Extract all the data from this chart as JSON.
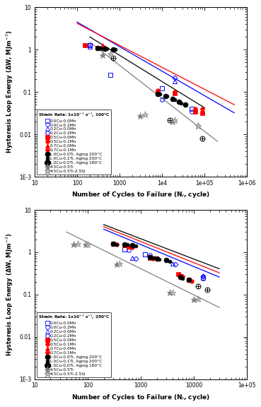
{
  "xlabel": "Number of Cycles to Failure (N$_f$, cycle)",
  "ylabel": "Hysteresis Loop Energy (ΔW, MJm$^{-3}$)",
  "legend_entries": [
    "0.0Cu-0.0Mn",
    "0.0Cu-0.2Mn",
    "0.2Cu-0.0Mn",
    "0.2Cu-0.2Mn",
    "0.5Cu-0.0Mn",
    "0.5Cu-0.1Mn",
    "0.7Cu-0.0Mn",
    "0.7Cu-0.1Mn",
    "1.0Cu-0.0Ti, Aging 200°C",
    "1.0Cu-0.1Ti, Aging 200°C",
    "1.0Cu-0.0Ti, Aging 180°C",
    "4.5Cu-0.5Ti",
    "4.5Cu-0.5Ti-2.5Si"
  ],
  "plot1": {
    "legend_title": "Strain Rate: 1x10$^{-3}$ s$^{-1}$, 100°C",
    "xlim": [
      10,
      1000000
    ],
    "ylim": [
      0.001,
      10
    ],
    "series": [
      {
        "idx": 0,
        "x": [
          200,
          600,
          10000,
          50000
        ],
        "y": [
          1.3,
          0.25,
          0.12,
          0.04
        ]
      },
      {
        "idx": 1,
        "x": [
          200,
          10000,
          50000
        ],
        "y": [
          1.3,
          0.065,
          0.035
        ]
      },
      {
        "idx": 2,
        "x": [
          200,
          400,
          20000
        ],
        "y": [
          1.2,
          1.1,
          0.18
        ]
      },
      {
        "idx": 3,
        "x": [
          20000
        ],
        "y": [
          0.22
        ]
      },
      {
        "idx": 4,
        "x": [
          150,
          300,
          8000,
          20000,
          60000,
          90000
        ],
        "y": [
          1.3,
          1.1,
          0.1,
          0.095,
          0.035,
          0.032
        ]
      },
      {
        "idx": 5,
        "x": [
          150,
          300,
          8000,
          20000,
          60000
        ],
        "y": [
          1.3,
          1.1,
          0.11,
          0.1,
          0.04
        ]
      },
      {
        "idx": 6,
        "x": [
          400,
          60000,
          90000
        ],
        "y": [
          1.3,
          0.04,
          0.035
        ]
      },
      {
        "idx": 7,
        "x": [
          8000,
          90000
        ],
        "y": [
          0.1,
          0.04
        ]
      },
      {
        "idx": 8,
        "x": [
          300,
          450,
          700,
          8000,
          12000,
          18000,
          25000,
          35000
        ],
        "y": [
          1.1,
          1.05,
          1.0,
          0.09,
          0.08,
          0.07,
          0.06,
          0.05
        ]
      },
      {
        "idx": 9,
        "x": [
          350,
          500,
          800,
          9000,
          13000,
          20000,
          28000
        ],
        "y": [
          1.1,
          1.05,
          1.0,
          0.09,
          0.08,
          0.065,
          0.055
        ]
      },
      {
        "idx": 10,
        "x": [
          700,
          15000,
          90000
        ],
        "y": [
          0.65,
          0.022,
          0.008
        ]
      },
      {
        "idx": 11,
        "x": [
          400,
          3000,
          18000,
          70000
        ],
        "y": [
          0.75,
          0.027,
          0.02,
          0.016
        ]
      },
      {
        "idx": 12,
        "x": [
          600,
          4000,
          20000,
          70000
        ],
        "y": [
          0.8,
          0.03,
          0.022,
          0.016
        ]
      }
    ],
    "fit_lines": [
      {
        "color": "blue",
        "x0": 100,
        "x1": 500000,
        "y0": 4.5,
        "slope": -0.58
      },
      {
        "color": "red",
        "x0": 100,
        "x1": 500000,
        "y0": 4.2,
        "slope": -0.52
      },
      {
        "color": "black",
        "x0": 200,
        "x1": 100000,
        "y0": 2.0,
        "slope": -0.62
      },
      {
        "color": "gray",
        "x0": 200,
        "x1": 200000,
        "y0": 1.5,
        "slope": -0.78
      }
    ]
  },
  "plot2": {
    "legend_title": "Strain Rate: 1x10$^{-3}$ s$^{-1}$, 250°C",
    "xlim": [
      10,
      100000
    ],
    "ylim": [
      0.001,
      10
    ],
    "series": [
      {
        "idx": 0,
        "x": [
          500,
          1200,
          15000
        ],
        "y": [
          1.15,
          0.9,
          0.25
        ]
      },
      {
        "idx": 1,
        "x": [
          600,
          1500,
          15000
        ],
        "y": [
          1.1,
          0.85,
          0.24
        ]
      },
      {
        "idx": 2,
        "x": [
          700,
          4000,
          15000
        ],
        "y": [
          0.72,
          0.55,
          0.28
        ]
      },
      {
        "idx": 3,
        "x": [
          800,
          4500,
          15000
        ],
        "y": [
          0.7,
          0.52,
          0.27
        ]
      },
      {
        "idx": 4,
        "x": [
          300,
          600,
          1500,
          5000,
          8000
        ],
        "y": [
          1.6,
          1.35,
          0.75,
          0.3,
          0.22
        ]
      },
      {
        "idx": 5,
        "x": [
          350,
          700,
          1800,
          5500,
          9000
        ],
        "y": [
          1.55,
          1.3,
          0.72,
          0.28,
          0.21
        ]
      },
      {
        "idx": 6,
        "x": [
          500,
          1500,
          5500
        ],
        "y": [
          1.45,
          0.72,
          0.28
        ]
      },
      {
        "idx": 7,
        "x": [
          550,
          1700,
          6000
        ],
        "y": [
          1.42,
          0.7,
          0.27
        ]
      },
      {
        "idx": 8,
        "x": [
          300,
          500,
          700,
          1500,
          2000,
          3000,
          5500,
          8000
        ],
        "y": [
          1.6,
          1.55,
          1.45,
          0.75,
          0.7,
          0.65,
          0.26,
          0.22
        ]
      },
      {
        "idx": 9,
        "x": [
          350,
          550,
          800,
          1700,
          2200,
          3500,
          6000
        ],
        "y": [
          1.55,
          1.5,
          1.42,
          0.72,
          0.68,
          0.6,
          0.24
        ]
      },
      {
        "idx": 10,
        "x": [
          12000,
          18000
        ],
        "y": [
          0.16,
          0.13
        ]
      },
      {
        "idx": 11,
        "x": [
          55,
          90,
          350,
          3500,
          10000
        ],
        "y": [
          1.55,
          1.5,
          0.52,
          0.11,
          0.075
        ]
      },
      {
        "idx": 12,
        "x": [
          65,
          100,
          400,
          4000,
          12000
        ],
        "y": [
          1.58,
          1.52,
          0.55,
          0.11,
          0.078
        ]
      }
    ],
    "fit_lines": [
      {
        "color": "blue",
        "x0": 200,
        "x1": 30000,
        "y0": 3.5,
        "slope": -0.52
      },
      {
        "color": "red",
        "x0": 200,
        "x1": 30000,
        "y0": 4.0,
        "slope": -0.5
      },
      {
        "color": "black",
        "x0": 200,
        "x1": 30000,
        "y0": 4.5,
        "slope": -0.48
      },
      {
        "color": "gray",
        "x0": 40,
        "x1": 30000,
        "y0": 3.0,
        "slope": -0.62
      }
    ]
  }
}
